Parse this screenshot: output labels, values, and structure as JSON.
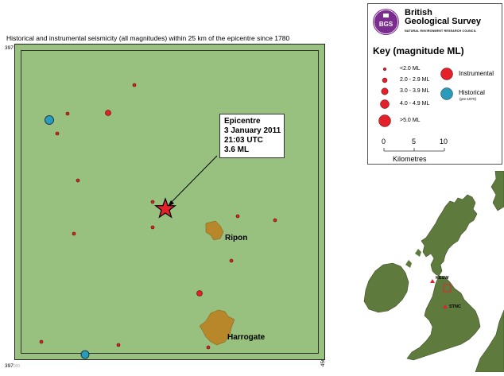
{
  "map": {
    "title": "Historical and instrumental seismicity (all magnitudes) within 25 km of the epicentre since 1780",
    "coords": {
      "top_left": "397",
      "top_left_sub": "000",
      "bottom_left": "397",
      "bottom_left_sub": "000",
      "bottom_right": "450",
      "bottom_right_sub": "000"
    },
    "epicentre": {
      "title": "Epicentre",
      "date": "3 January 2011",
      "time": "21:03 UTC",
      "magnitude": "3.6 ML"
    },
    "towns": [
      "Ripon",
      "Harrogate"
    ],
    "colors": {
      "land": "#98c07f",
      "town": "#b8872a",
      "instrumental": "#e4202a",
      "historical": "#2b9bbb",
      "epicentre": "#e4202a"
    }
  },
  "key": {
    "org_name_line1": "British",
    "org_name_line2": "Geological Survey",
    "org_sub": "NATURAL ENVIRONMENT RESEARCH COUNCIL",
    "logo_text": "BGS",
    "title": "Key (magnitude ML)",
    "sizes": [
      "<2.0 ML",
      "2.0 - 2.9 ML",
      "3.0 - 3.9 ML",
      "4.0 - 4.9 ML",
      ">5.0 ML"
    ],
    "instrumental_label": "Instrumental",
    "historical_label": "Historical",
    "historical_note": "(pre-1970)",
    "scale": {
      "ticks": [
        "0",
        "5",
        "10"
      ],
      "unit": "Kilometres"
    }
  },
  "inset": {
    "stations": [
      "KESW",
      "STNC"
    ]
  }
}
